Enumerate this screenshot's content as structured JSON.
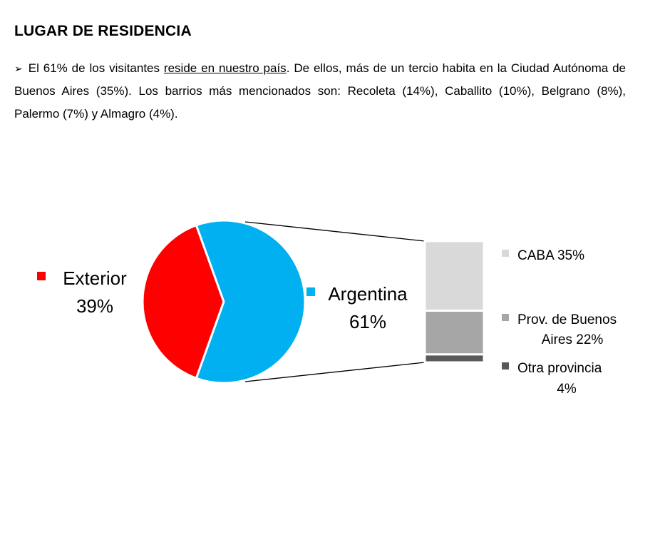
{
  "heading": "LUGAR DE RESIDENCIA",
  "paragraph": {
    "bullet": "➢",
    "before": "El 61% de los visitantes ",
    "underlined": "reside en nuestro país",
    "after": ". De ellos, más de un tercio habita en la Ciudad Autónoma de Buenos Aires (35%). Los barrios más mencionados son: Recoleta (14%), Caballito (10%), Belgrano (8%), Palermo (7%) y Almagro (4%)."
  },
  "chart_data": {
    "type": "pie",
    "pie": {
      "slices": [
        {
          "label": "Exterior",
          "value": 39,
          "display": "39%",
          "color": "#FF0000"
        },
        {
          "label": "Argentina",
          "value": 61,
          "display": "61%",
          "color": "#00B0F0"
        }
      ]
    },
    "breakdown": {
      "type": "stacked-bar",
      "of": "Argentina",
      "segments": [
        {
          "label_lines": [
            "CABA 35%"
          ],
          "value": 35,
          "color": "#D9D9D9"
        },
        {
          "label_lines": [
            "Prov. de Buenos",
            "Aires 22%"
          ],
          "value": 22,
          "color": "#A6A6A6"
        },
        {
          "label_lines": [
            "Otra provincia",
            "4%"
          ],
          "value": 4,
          "color": "#595959"
        }
      ]
    }
  }
}
